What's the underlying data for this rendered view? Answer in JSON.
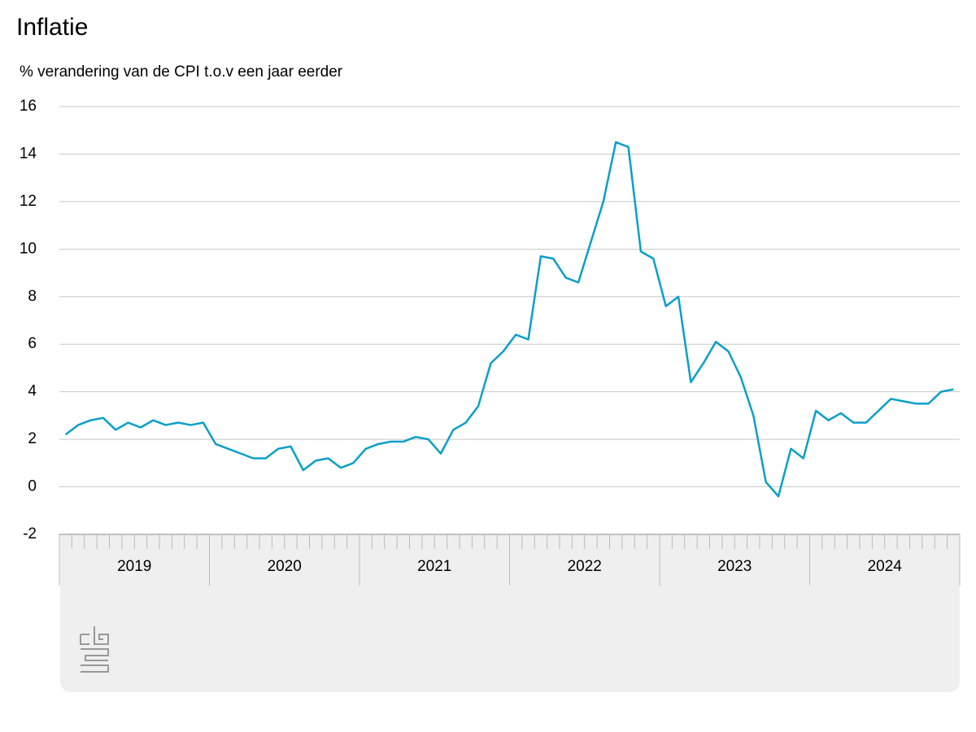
{
  "chart_data": {
    "type": "line",
    "title": "Inflatie",
    "subtitle": "% verandering van de CPI t.o.v een jaar eerder",
    "categories": [
      "2019",
      null,
      null,
      null,
      null,
      null,
      null,
      null,
      null,
      null,
      null,
      null,
      "2020",
      null,
      null,
      null,
      null,
      null,
      null,
      null,
      null,
      null,
      null,
      null,
      "2021",
      null,
      null,
      null,
      null,
      null,
      null,
      null,
      null,
      null,
      null,
      null,
      "2022",
      null,
      null,
      null,
      null,
      null,
      null,
      null,
      null,
      null,
      null,
      null,
      "2023",
      null,
      null,
      null,
      null,
      null,
      null,
      null,
      null,
      null,
      null,
      null,
      "2024",
      null,
      null,
      null,
      null,
      null,
      null,
      null,
      null,
      null,
      null,
      null
    ],
    "series": [
      {
        "name": "CPI",
        "color": "#0a9fc8",
        "values": [
          2.2,
          2.6,
          2.8,
          2.9,
          2.4,
          2.7,
          2.5,
          2.8,
          2.6,
          2.7,
          2.6,
          2.7,
          1.8,
          1.6,
          1.4,
          1.2,
          1.2,
          1.6,
          1.7,
          0.7,
          1.1,
          1.2,
          0.8,
          1.0,
          1.6,
          1.8,
          1.9,
          1.9,
          2.1,
          2.0,
          1.4,
          2.4,
          2.7,
          3.4,
          5.2,
          5.7,
          6.4,
          6.2,
          9.7,
          9.6,
          8.8,
          8.6,
          10.3,
          12.0,
          14.5,
          14.3,
          9.9,
          9.6,
          7.6,
          8.0,
          4.4,
          5.2,
          6.1,
          5.7,
          4.6,
          3.0,
          0.2,
          -0.4,
          1.6,
          1.2,
          3.2,
          2.8,
          3.1,
          2.7,
          2.7,
          3.2,
          3.7,
          3.6,
          3.5,
          3.5,
          4.0,
          4.1
        ]
      }
    ],
    "ylim": [
      -2,
      16
    ],
    "yticks": [
      -2,
      0,
      2,
      4,
      6,
      8,
      10,
      12,
      14,
      16
    ],
    "grid": true
  }
}
